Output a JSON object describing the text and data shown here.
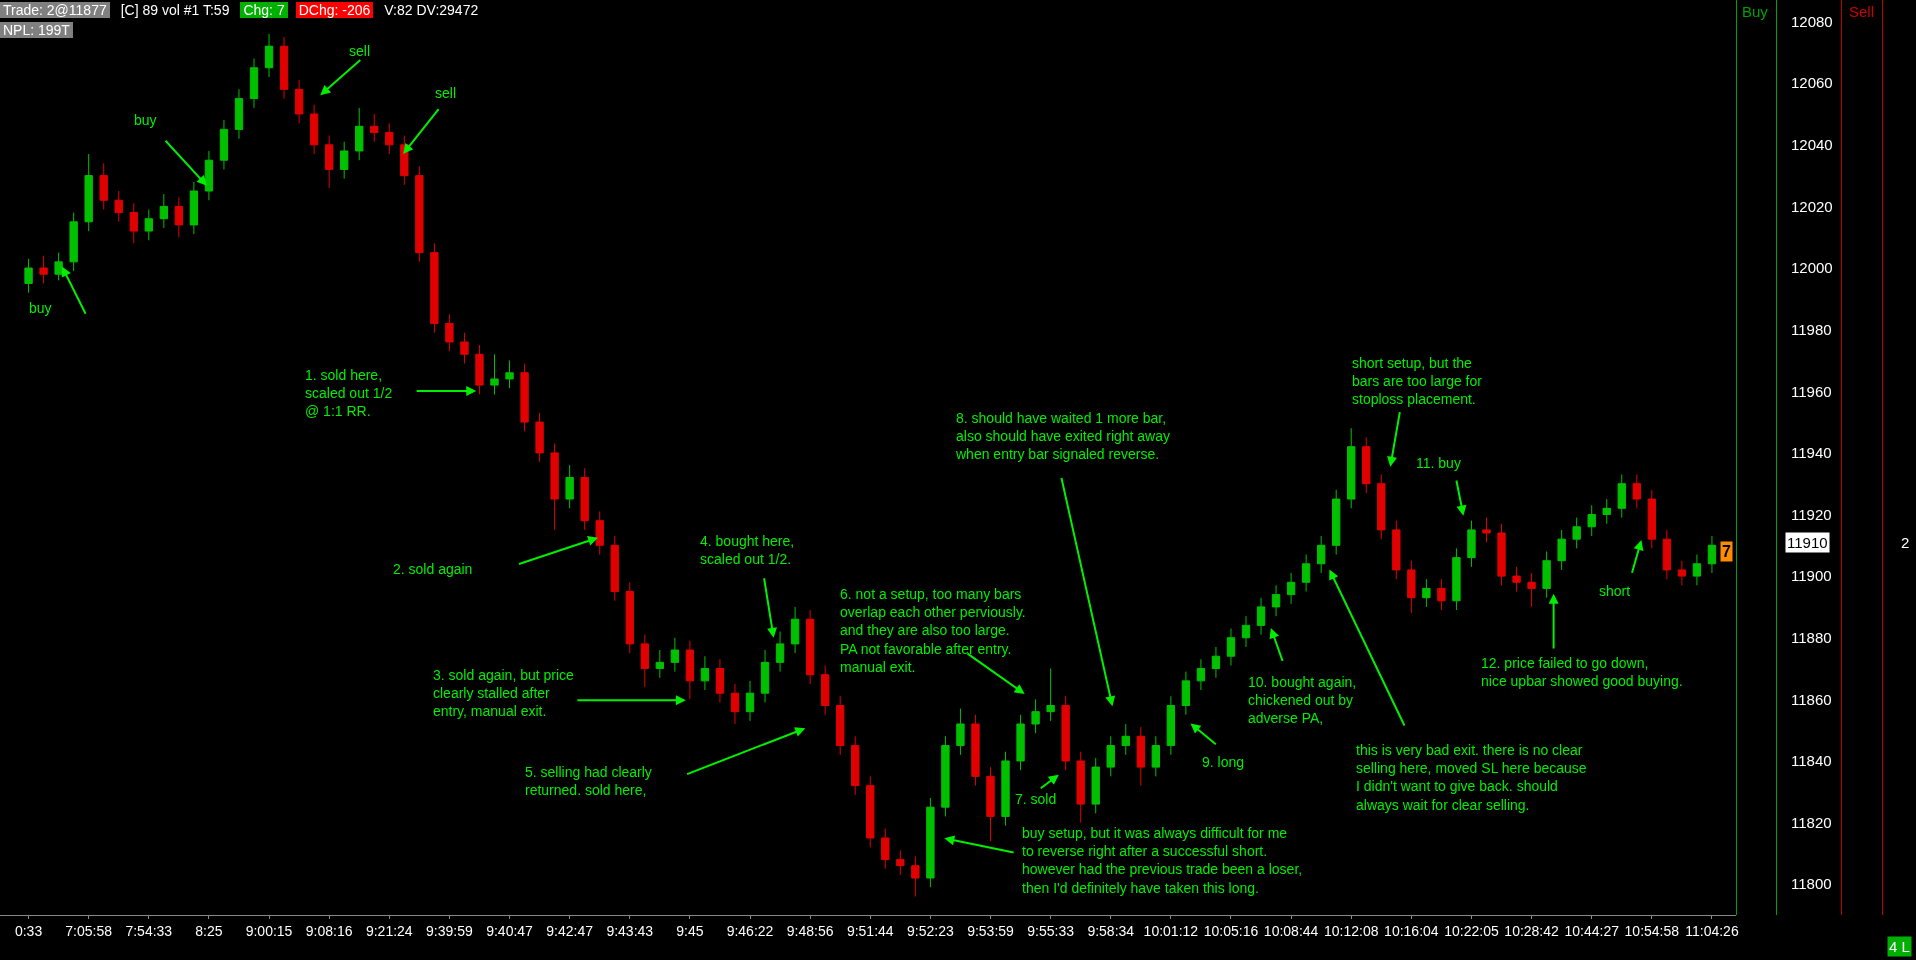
{
  "chart_data": {
    "type": "candlestick",
    "categories": [
      "0:33",
      null,
      null,
      null,
      "7:05:58",
      null,
      null,
      null,
      "7:54:33",
      null,
      null,
      null,
      "8:25",
      null,
      null,
      null,
      "9:00:15",
      null,
      null,
      null,
      "9:08:16",
      null,
      null,
      null,
      "9:21:24",
      null,
      null,
      null,
      "9:39:59",
      null,
      null,
      null,
      "9:40:47",
      null,
      null,
      null,
      "9:42:47",
      null,
      null,
      null,
      "9:43:43",
      null,
      null,
      null,
      "9:45",
      null,
      null,
      null,
      "9:46:22",
      null,
      null,
      null,
      "9:48:56",
      null,
      null,
      null,
      "9:51:44",
      null,
      null,
      null,
      "9:52:23",
      null,
      null,
      null,
      "9:53:59",
      null,
      null,
      null,
      "9:55:33",
      null,
      null,
      null,
      "9:58:34",
      null,
      null,
      null,
      "10:01:12",
      null,
      null,
      null,
      "10:05:16",
      null,
      null,
      null,
      "10:08:44",
      null,
      null,
      null,
      "10:12:08",
      null,
      null,
      null,
      "10:16:04",
      null,
      null,
      null,
      "10:22:05",
      null,
      null,
      null,
      "10:28:42",
      null,
      null,
      null,
      "10:44:27",
      null,
      null,
      null,
      "10:54:58",
      null,
      null,
      null,
      "11:04:26"
    ],
    "ohlc": [
      [
        11995,
        12003,
        11992,
        12000
      ],
      [
        12000,
        12004,
        11995,
        11998
      ],
      [
        11998,
        12005,
        11996,
        12002
      ],
      [
        12002,
        12018,
        11999,
        12015
      ],
      [
        12015,
        12037,
        12012,
        12030
      ],
      [
        12030,
        12034,
        12019,
        12022
      ],
      [
        12022,
        12025,
        12015,
        12018
      ],
      [
        12018,
        12021,
        12008,
        12012
      ],
      [
        12012,
        12019,
        12009,
        12016
      ],
      [
        12016,
        12024,
        12013,
        12020
      ],
      [
        12020,
        12023,
        12010,
        12014
      ],
      [
        12014,
        12028,
        12011,
        12025
      ],
      [
        12025,
        12038,
        12022,
        12035
      ],
      [
        12035,
        12048,
        12032,
        12045
      ],
      [
        12045,
        12058,
        12042,
        12055
      ],
      [
        12055,
        12068,
        12052,
        12065
      ],
      [
        12065,
        12076,
        12062,
        12072
      ],
      [
        12072,
        12075,
        12055,
        12058
      ],
      [
        12058,
        12061,
        12047,
        12050
      ],
      [
        12050,
        12053,
        12037,
        12040
      ],
      [
        12040,
        12043,
        12026,
        12032
      ],
      [
        12032,
        12041,
        12029,
        12038
      ],
      [
        12038,
        12052,
        12035,
        12046
      ],
      [
        12046,
        12050,
        12041,
        12044
      ],
      [
        12044,
        12047,
        12037,
        12040
      ],
      [
        12040,
        12043,
        12027,
        12030
      ],
      [
        12030,
        12033,
        12002,
        12005
      ],
      [
        12005,
        12008,
        11979,
        11982
      ],
      [
        11982,
        11985,
        11973,
        11976
      ],
      [
        11976,
        11979,
        11969,
        11972
      ],
      [
        11972,
        11975,
        11959,
        11962
      ],
      [
        11962,
        11972,
        11959,
        11964
      ],
      [
        11964,
        11970,
        11961,
        11966
      ],
      [
        11966,
        11969,
        11947,
        11950
      ],
      [
        11950,
        11953,
        11937,
        11940
      ],
      [
        11940,
        11943,
        11915,
        11925
      ],
      [
        11925,
        11936,
        11922,
        11932
      ],
      [
        11932,
        11935,
        11915,
        11918
      ],
      [
        11918,
        11921,
        11907,
        11910
      ],
      [
        11910,
        11913,
        11892,
        11895
      ],
      [
        11895,
        11898,
        11875,
        11878
      ],
      [
        11878,
        11881,
        11864,
        11870
      ],
      [
        11870,
        11876,
        11867,
        11872
      ],
      [
        11872,
        11880,
        11869,
        11876
      ],
      [
        11876,
        11879,
        11860,
        11866
      ],
      [
        11866,
        11874,
        11863,
        11870
      ],
      [
        11870,
        11873,
        11859,
        11862
      ],
      [
        11862,
        11865,
        11852,
        11856
      ],
      [
        11856,
        11866,
        11853,
        11862
      ],
      [
        11862,
        11876,
        11859,
        11872
      ],
      [
        11872,
        11882,
        11869,
        11878
      ],
      [
        11878,
        11890,
        11875,
        11886
      ],
      [
        11886,
        11889,
        11865,
        11868
      ],
      [
        11868,
        11871,
        11855,
        11858
      ],
      [
        11858,
        11861,
        11842,
        11845
      ],
      [
        11845,
        11848,
        11829,
        11832
      ],
      [
        11832,
        11835,
        11812,
        11815
      ],
      [
        11815,
        11818,
        11805,
        11808
      ],
      [
        11808,
        11811,
        11803,
        11806
      ],
      [
        11806,
        11809,
        11796,
        11802
      ],
      [
        11802,
        11828,
        11799,
        11825
      ],
      [
        11825,
        11848,
        11822,
        11845
      ],
      [
        11845,
        11857,
        11842,
        11852
      ],
      [
        11852,
        11855,
        11832,
        11835
      ],
      [
        11835,
        11838,
        11814,
        11822
      ],
      [
        11822,
        11843,
        11819,
        11840
      ],
      [
        11840,
        11855,
        11837,
        11852
      ],
      [
        11852,
        11860,
        11849,
        11856
      ],
      [
        11856,
        11870,
        11853,
        11858
      ],
      [
        11858,
        11861,
        11837,
        11840
      ],
      [
        11840,
        11843,
        11820,
        11826
      ],
      [
        11826,
        11841,
        11823,
        11838
      ],
      [
        11838,
        11848,
        11835,
        11845
      ],
      [
        11845,
        11852,
        11842,
        11848
      ],
      [
        11848,
        11851,
        11832,
        11838
      ],
      [
        11838,
        11848,
        11835,
        11845
      ],
      [
        11845,
        11861,
        11842,
        11858
      ],
      [
        11858,
        11869,
        11855,
        11866
      ],
      [
        11866,
        11873,
        11863,
        11870
      ],
      [
        11870,
        11877,
        11867,
        11874
      ],
      [
        11874,
        11883,
        11871,
        11880
      ],
      [
        11880,
        11887,
        11877,
        11884
      ],
      [
        11884,
        11893,
        11881,
        11890
      ],
      [
        11890,
        11897,
        11887,
        11894
      ],
      [
        11894,
        11901,
        11891,
        11898
      ],
      [
        11898,
        11907,
        11895,
        11904
      ],
      [
        11904,
        11913,
        11901,
        11910
      ],
      [
        11910,
        11928,
        11907,
        11925
      ],
      [
        11925,
        11948,
        11922,
        11942
      ],
      [
        11942,
        11945,
        11927,
        11930
      ],
      [
        11930,
        11933,
        11912,
        11915
      ],
      [
        11915,
        11918,
        11899,
        11902
      ],
      [
        11902,
        11905,
        11888,
        11893
      ],
      [
        11893,
        11899,
        11890,
        11896
      ],
      [
        11896,
        11899,
        11889,
        11892
      ],
      [
        11892,
        11909,
        11889,
        11906
      ],
      [
        11906,
        11918,
        11903,
        11915
      ],
      [
        11915,
        11919,
        11911,
        11914
      ],
      [
        11914,
        11917,
        11897,
        11900
      ],
      [
        11900,
        11903,
        11895,
        11898
      ],
      [
        11898,
        11901,
        11890,
        11896
      ],
      [
        11896,
        11908,
        11893,
        11905
      ],
      [
        11905,
        11915,
        11902,
        11912
      ],
      [
        11912,
        11919,
        11909,
        11916
      ],
      [
        11916,
        11923,
        11913,
        11920
      ],
      [
        11920,
        11925,
        11917,
        11922
      ],
      [
        11922,
        11933,
        11919,
        11930
      ],
      [
        11930,
        11933,
        11922,
        11925
      ],
      [
        11925,
        11928,
        11909,
        11912
      ],
      [
        11912,
        11915,
        11899,
        11902
      ],
      [
        11902,
        11905,
        11897,
        11900
      ],
      [
        11900,
        11907,
        11897,
        11904
      ],
      [
        11904,
        11913,
        11901,
        11910
      ]
    ],
    "ylim": [
      11790,
      12087
    ],
    "yticks": [
      11800,
      11820,
      11840,
      11860,
      11880,
      11900,
      11920,
      11940,
      11960,
      11980,
      12000,
      12020,
      12040,
      12060,
      12080
    ],
    "annotations": [
      "Trade: 2@11877",
      "[C]  89 vol  #1 T:59",
      "Chg: 7",
      "DChg: -206",
      "V:82 DV:29472",
      "NPL: 199T",
      "Buy",
      "Sell",
      "2",
      "4 L",
      "7",
      "11910",
      "buy",
      "buy",
      "sell",
      "sell",
      "1. sold here,\nscaled out 1/2\n@ 1:1 RR.",
      "2. sold again",
      "3. sold again, but price\nclearly stalled after\nentry, manual exit.",
      "4. bought here,\nscaled out 1/2.",
      "5. selling had clearly\nreturned. sold here,",
      "6. not a setup, too many bars\noverlap each other perviously.\nand they are also too large.\nPA not favorable after entry.\nmanual exit.",
      "7. sold",
      "8. should have waited 1 more bar,\nalso should have exited right away\nwhen entry bar signaled reverse.",
      "buy setup, but it was always difficult for me\nto reverse right after a successful short.\nhowever had the previous trade been a loser,\nthen I'd definitely have taken this long.",
      "9. long",
      "10. bought again,\nchickened out by\nadverse PA,",
      "this is very bad exit. there is no clear\nselling here, moved SL here because\nI didn't want to give back. should\nalways wait for clear selling.",
      "short setup, but the\nbars are too large for\nstoploss placement.",
      "11. buy",
      "12. price failed to go down,\nnice upbar showed good buying.",
      "short"
    ]
  }
}
